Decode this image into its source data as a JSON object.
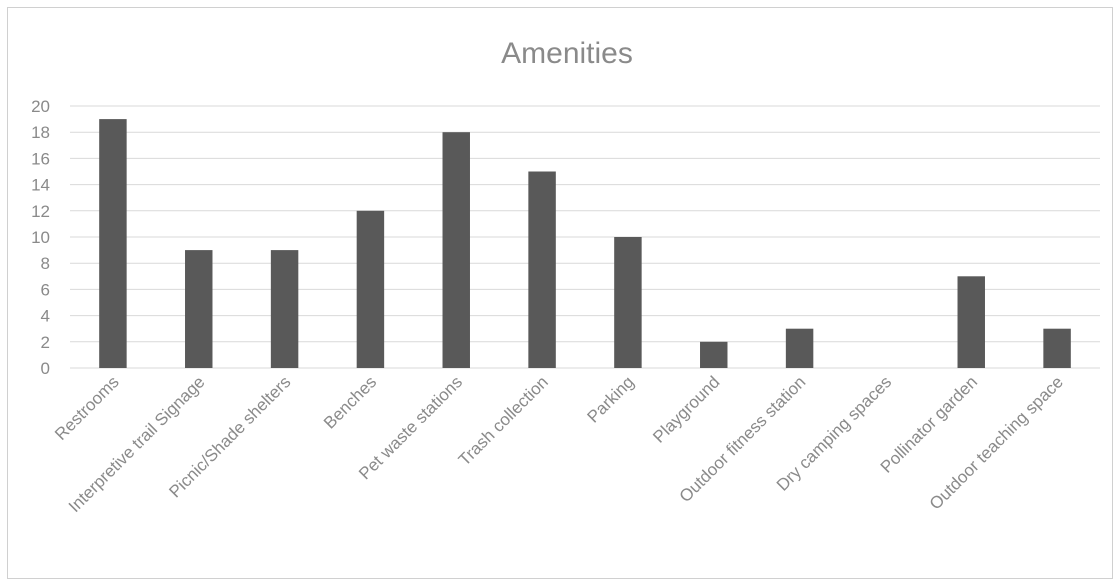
{
  "chart_data": {
    "type": "bar",
    "title": "Amenities",
    "xlabel": "",
    "ylabel": "",
    "categories": [
      "Restrooms",
      "Interpretive trail Signage",
      "Picnic/Shade shelters",
      "Benches",
      "Pet waste stations",
      "Trash collection",
      "Parking",
      "Playground",
      "Outdoor fitness station",
      "Dry camping spaces",
      "Pollinator garden",
      "Outdoor teaching space"
    ],
    "values": [
      19,
      9,
      9,
      12,
      18,
      15,
      10,
      2,
      3,
      0,
      7,
      3
    ],
    "ylim": [
      0,
      20
    ],
    "yticks": [
      0,
      2,
      4,
      6,
      8,
      10,
      12,
      14,
      16,
      18,
      20
    ],
    "grid": true,
    "legend": "none",
    "colors": {
      "bar": "#595959",
      "grid": "#d9d9d9",
      "text": "#8a8a8a",
      "border": "#d0d0d0"
    }
  }
}
